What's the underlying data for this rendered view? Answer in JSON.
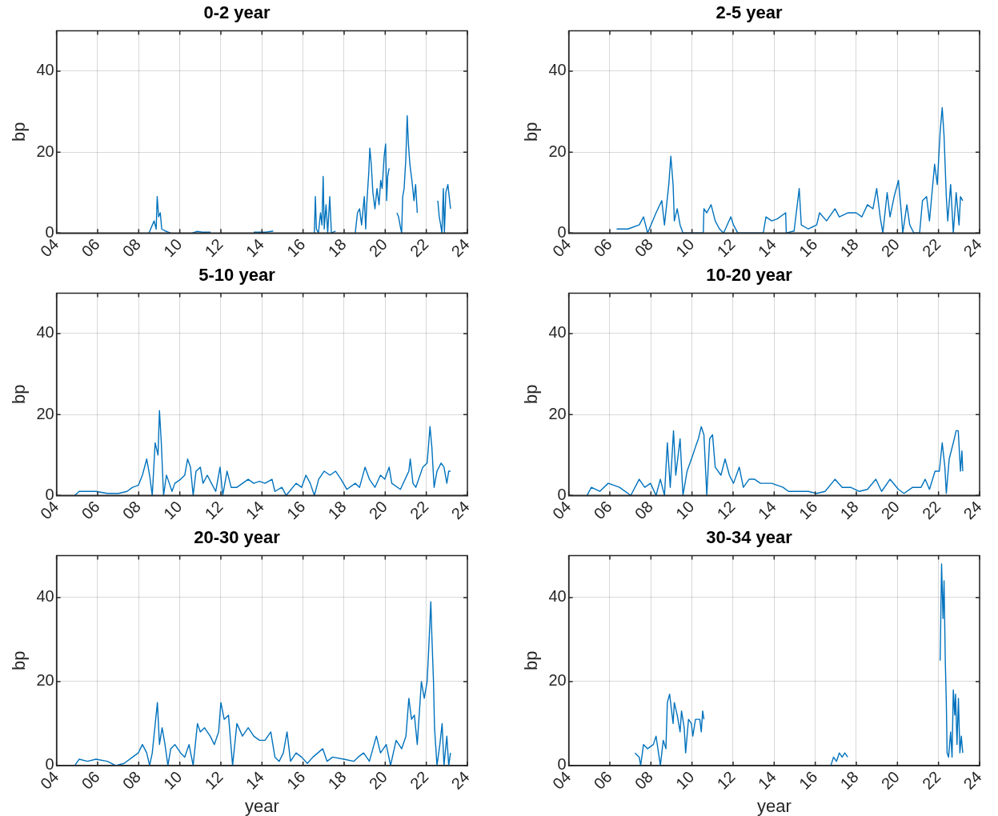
{
  "chart_data": [
    {
      "type": "line",
      "title": "0-2 year",
      "ylabel": "bp",
      "xlim": [
        2004,
        2024
      ],
      "xticks": [
        {
          "value": 2004,
          "label": "04"
        },
        {
          "value": 2006,
          "label": "06"
        },
        {
          "value": 2008,
          "label": "08"
        },
        {
          "value": 2010,
          "label": "10"
        },
        {
          "value": 2012,
          "label": "12"
        },
        {
          "value": 2014,
          "label": "14"
        },
        {
          "value": 2016,
          "label": "16"
        },
        {
          "value": 2018,
          "label": "18"
        },
        {
          "value": 2020,
          "label": "20"
        },
        {
          "value": 2022,
          "label": "22"
        },
        {
          "value": 2024,
          "label": "24"
        }
      ],
      "ylim": [
        0,
        50
      ],
      "yticks": [
        0,
        20,
        40
      ],
      "grid": true,
      "x": [
        2008.5,
        2008.75,
        2008.85,
        2008.9,
        2008.97,
        2009.05,
        2009.12,
        2009.3,
        2009.55,
        2010,
        2010.6,
        2010.85,
        2011.1,
        2011.5,
        2012.5,
        2013.6,
        2014.2,
        2014.55,
        2015.5,
        2016.55,
        2016.6,
        2016.65,
        2016.75,
        2016.85,
        2016.92,
        2016.98,
        2017.03,
        2017.12,
        2017.2,
        2017.3,
        2017.38,
        2017.58,
        2018,
        2018.54,
        2018.65,
        2018.75,
        2018.85,
        2018.98,
        2019.05,
        2019.1,
        2019.2,
        2019.25,
        2019.32,
        2019.4,
        2019.5,
        2019.6,
        2019.7,
        2019.78,
        2019.85,
        2019.95,
        2020.02,
        2020.07,
        2020.12,
        2020.19,
        2020.4,
        2020.57,
        2020.65,
        2020.72,
        2020.8,
        2020.85,
        2020.92,
        2021,
        2021.07,
        2021.13,
        2021.2,
        2021.3,
        2021.4,
        2021.48,
        2021.56,
        2022,
        2022.56,
        2022.63,
        2022.7,
        2022.76,
        2022.83,
        2022.88,
        2022.95,
        2023.05,
        2023.18
      ],
      "series": [
        {
          "color": "#0072bd",
          "values": [
            0,
            3,
            1,
            9,
            4,
            5,
            1,
            0.5,
            0,
            null,
            0,
            0.4,
            0.2,
            0.2,
            null,
            0.2,
            0.2,
            0.5,
            null,
            0,
            9,
            1,
            0,
            5,
            2,
            14,
            1,
            7,
            0,
            9,
            0,
            0.5,
            null,
            0,
            5,
            6,
            2,
            9,
            1,
            7,
            15,
            21,
            17,
            10,
            6,
            11,
            7,
            13,
            11,
            19,
            22,
            8,
            14,
            16,
            null,
            5,
            4,
            2,
            0,
            9,
            11,
            18,
            29,
            22,
            17,
            13,
            8,
            12,
            5,
            null,
            8,
            4,
            2,
            0,
            11,
            0,
            10,
            12,
            6
          ]
        }
      ]
    },
    {
      "type": "line",
      "title": "2-5 year",
      "ylabel": "bp",
      "xlim": [
        2004,
        2024
      ],
      "xticks": [
        {
          "value": 2004,
          "label": "04"
        },
        {
          "value": 2006,
          "label": "06"
        },
        {
          "value": 2008,
          "label": "08"
        },
        {
          "value": 2010,
          "label": "10"
        },
        {
          "value": 2012,
          "label": "12"
        },
        {
          "value": 2014,
          "label": "14"
        },
        {
          "value": 2016,
          "label": "16"
        },
        {
          "value": 2018,
          "label": "18"
        },
        {
          "value": 2020,
          "label": "20"
        },
        {
          "value": 2022,
          "label": "22"
        },
        {
          "value": 2024,
          "label": "24"
        }
      ],
      "ylim": [
        0,
        50
      ],
      "yticks": [
        0,
        20,
        40
      ],
      "grid": true,
      "x": [
        2006.33,
        2006.88,
        2007.43,
        2007.64,
        2007.84,
        2008.25,
        2008.53,
        2008.66,
        2008.87,
        2008.97,
        2009.08,
        2009.14,
        2009.28,
        2009.42,
        2009.56,
        2010.55,
        2010.58,
        2010.72,
        2010.93,
        2011.13,
        2011.34,
        2011.54,
        2011.89,
        2012.02,
        2012.23,
        2013.47,
        2013.6,
        2013.88,
        2014.15,
        2014.56,
        2014.59,
        2014.97,
        2015.22,
        2015.32,
        2015.66,
        2016.07,
        2016.21,
        2016.55,
        2016.96,
        2017.17,
        2017.58,
        2017.99,
        2018.27,
        2018.54,
        2018.81,
        2018.99,
        2019.16,
        2019.29,
        2019.5,
        2019.64,
        2019.84,
        2020.05,
        2020.19,
        2020.26,
        2020.46,
        2020.6,
        2020.8,
        2021.08,
        2021.22,
        2021.42,
        2021.56,
        2021.81,
        2021.94,
        2022.08,
        2022.18,
        2022.27,
        2022.38,
        2022.45,
        2022.59,
        2022.72,
        2022.86,
        2023,
        2023.07,
        2023.18
      ],
      "series": [
        {
          "color": "#0072bd",
          "values": [
            1,
            1,
            2,
            4,
            0,
            5,
            8,
            2,
            12,
            19,
            12,
            3,
            6,
            2,
            0,
            0,
            6,
            5,
            7,
            3,
            1,
            0,
            4,
            2,
            0,
            0,
            4,
            3,
            3.5,
            5,
            0,
            0.5,
            11,
            2,
            1,
            2,
            5,
            3,
            6,
            4,
            5,
            5,
            4,
            7,
            6,
            11,
            4,
            0,
            10,
            4,
            9,
            13,
            5,
            0,
            7,
            2,
            0,
            0,
            8,
            9,
            3,
            17,
            12,
            25,
            31,
            24,
            9,
            3,
            12,
            0,
            10,
            2,
            9,
            8
          ]
        }
      ]
    },
    {
      "type": "line",
      "title": "5-10 year",
      "ylabel": "bp",
      "xlim": [
        2004,
        2024
      ],
      "xticks": [
        {
          "value": 2004,
          "label": "04"
        },
        {
          "value": 2006,
          "label": "06"
        },
        {
          "value": 2008,
          "label": "08"
        },
        {
          "value": 2010,
          "label": "10"
        },
        {
          "value": 2012,
          "label": "12"
        },
        {
          "value": 2014,
          "label": "14"
        },
        {
          "value": 2016,
          "label": "16"
        },
        {
          "value": 2018,
          "label": "18"
        },
        {
          "value": 2020,
          "label": "20"
        },
        {
          "value": 2022,
          "label": "22"
        },
        {
          "value": 2024,
          "label": "24"
        }
      ],
      "ylim": [
        0,
        50
      ],
      "yticks": [
        0,
        20,
        40
      ],
      "grid": true,
      "x": [
        2004.89,
        2005.1,
        2005.51,
        2005.92,
        2006.47,
        2007.02,
        2007.43,
        2007.7,
        2007.98,
        2008.18,
        2008.39,
        2008.53,
        2008.66,
        2008.8,
        2008.94,
        2009.01,
        2009.1,
        2009.21,
        2009.35,
        2009.49,
        2009.62,
        2009.76,
        2010.04,
        2010.24,
        2010.38,
        2010.52,
        2010.65,
        2010.79,
        2011,
        2011.13,
        2011.34,
        2011.54,
        2011.75,
        2011.96,
        2012.09,
        2012.3,
        2012.5,
        2012.78,
        2013.33,
        2013.6,
        2013.88,
        2014.15,
        2014.49,
        2014.63,
        2014.97,
        2015.18,
        2015.66,
        2015.93,
        2016.14,
        2016.35,
        2016.55,
        2016.76,
        2017.03,
        2017.31,
        2017.58,
        2017.85,
        2018.13,
        2018.54,
        2018.75,
        2019.02,
        2019.23,
        2019.5,
        2019.77,
        2019.98,
        2020.19,
        2020.32,
        2020.74,
        2021.15,
        2021.22,
        2021.35,
        2021.49,
        2021.83,
        2022.04,
        2022.18,
        2022.27,
        2022.38,
        2022.52,
        2022.72,
        2022.86,
        2023,
        2023.09,
        2023.18
      ],
      "series": [
        {
          "color": "#0072bd",
          "values": [
            0,
            1,
            1,
            1,
            0.5,
            0.5,
            1,
            2,
            2.5,
            5,
            9,
            5,
            0,
            13,
            10,
            21,
            13,
            0,
            5,
            3,
            1,
            3,
            4,
            5,
            9,
            7,
            0,
            6,
            7,
            3,
            5,
            3,
            1,
            7,
            0,
            6,
            2,
            2,
            4,
            3,
            3.5,
            3,
            4,
            1,
            2,
            0,
            3,
            2,
            5,
            3,
            0,
            4,
            6,
            5,
            6,
            4,
            1.5,
            3,
            2,
            7,
            4,
            2,
            5,
            4,
            7,
            3,
            1.5,
            6,
            9,
            3,
            2,
            7,
            8,
            17,
            12,
            2,
            6,
            8,
            7,
            3,
            6,
            6
          ]
        }
      ]
    },
    {
      "type": "line",
      "title": "10-20 year",
      "ylabel": "bp",
      "xlim": [
        2004,
        2024
      ],
      "xticks": [
        {
          "value": 2004,
          "label": "04"
        },
        {
          "value": 2006,
          "label": "06"
        },
        {
          "value": 2008,
          "label": "08"
        },
        {
          "value": 2010,
          "label": "10"
        },
        {
          "value": 2012,
          "label": "12"
        },
        {
          "value": 2014,
          "label": "14"
        },
        {
          "value": 2016,
          "label": "16"
        },
        {
          "value": 2018,
          "label": "18"
        },
        {
          "value": 2020,
          "label": "20"
        },
        {
          "value": 2022,
          "label": "22"
        },
        {
          "value": 2024,
          "label": "24"
        }
      ],
      "ylim": [
        0,
        50
      ],
      "yticks": [
        0,
        20,
        40
      ],
      "grid": true,
      "x": [
        2004.89,
        2005.1,
        2005.51,
        2005.92,
        2006.47,
        2007.02,
        2007.43,
        2007.7,
        2007.98,
        2008.25,
        2008.46,
        2008.66,
        2008.8,
        2008.94,
        2009.1,
        2009.21,
        2009.42,
        2009.56,
        2009.76,
        2010.04,
        2010.17,
        2010.31,
        2010.45,
        2010.58,
        2010.72,
        2010.86,
        2011,
        2011.13,
        2011.41,
        2011.61,
        2011.82,
        2012.02,
        2012.3,
        2012.5,
        2012.78,
        2013.05,
        2013.33,
        2013.88,
        2014.43,
        2014.7,
        2015.11,
        2015.66,
        2016.07,
        2016.48,
        2016.96,
        2017.31,
        2017.72,
        2018.13,
        2018.54,
        2018.95,
        2019.23,
        2019.64,
        2020.05,
        2020.32,
        2020.74,
        2021.15,
        2021.35,
        2021.56,
        2021.83,
        2022.04,
        2022.18,
        2022.31,
        2022.38,
        2022.52,
        2022.72,
        2022.86,
        2022.96,
        2023.07,
        2023.14,
        2023.18
      ],
      "series": [
        {
          "color": "#0072bd",
          "values": [
            0,
            2,
            1,
            3,
            2,
            0,
            4,
            2,
            3,
            0,
            4,
            0,
            13,
            2,
            16,
            5,
            14,
            0,
            6,
            10,
            12,
            14,
            17,
            15,
            0,
            14,
            15,
            7,
            5,
            9,
            5,
            3,
            7,
            2,
            4,
            4,
            3,
            3,
            2,
            1,
            1,
            1,
            0.5,
            1,
            4,
            2,
            2,
            1,
            1.5,
            4,
            1,
            4,
            1.5,
            0.5,
            2,
            2,
            4,
            1.5,
            6,
            6,
            13,
            7,
            0.5,
            9,
            13,
            16,
            16,
            6,
            11,
            6
          ]
        }
      ]
    },
    {
      "type": "line",
      "title": "20-30 year",
      "xlabel": "year",
      "ylabel": "bp",
      "xlim": [
        2004,
        2024
      ],
      "xticks": [
        {
          "value": 2004,
          "label": "04"
        },
        {
          "value": 2006,
          "label": "06"
        },
        {
          "value": 2008,
          "label": "08"
        },
        {
          "value": 2010,
          "label": "10"
        },
        {
          "value": 2012,
          "label": "12"
        },
        {
          "value": 2014,
          "label": "14"
        },
        {
          "value": 2016,
          "label": "16"
        },
        {
          "value": 2018,
          "label": "18"
        },
        {
          "value": 2020,
          "label": "20"
        },
        {
          "value": 2022,
          "label": "22"
        },
        {
          "value": 2024,
          "label": "24"
        }
      ],
      "ylim": [
        0,
        50
      ],
      "yticks": [
        0,
        20,
        40
      ],
      "grid": true,
      "x": [
        2004.89,
        2005.1,
        2005.51,
        2005.92,
        2006.47,
        2006.88,
        2007.29,
        2007.7,
        2007.98,
        2008.18,
        2008.39,
        2008.53,
        2008.66,
        2008.91,
        2009.01,
        2009.14,
        2009.28,
        2009.42,
        2009.56,
        2009.76,
        2010.04,
        2010.24,
        2010.45,
        2010.65,
        2010.86,
        2011,
        2011.2,
        2011.48,
        2011.68,
        2011.89,
        2012,
        2012.16,
        2012.37,
        2012.57,
        2012.78,
        2013.05,
        2013.33,
        2013.6,
        2013.88,
        2014.15,
        2014.43,
        2014.63,
        2014.84,
        2015.04,
        2015.22,
        2015.39,
        2015.66,
        2015.93,
        2016.21,
        2016.48,
        2016.96,
        2017.17,
        2017.44,
        2017.99,
        2018.47,
        2018.68,
        2018.95,
        2019.23,
        2019.57,
        2019.77,
        2020.05,
        2020.26,
        2020.53,
        2020.8,
        2021.01,
        2021.15,
        2021.28,
        2021.42,
        2021.56,
        2021.76,
        2021.9,
        2022.04,
        2022.11,
        2022.22,
        2022.27,
        2022.35,
        2022.4,
        2022.52,
        2022.66,
        2022.77,
        2022.86,
        2023,
        2023.09,
        2023.18
      ],
      "series": [
        {
          "color": "#0072bd",
          "values": [
            0,
            1.5,
            1,
            1.5,
            1,
            0,
            0.5,
            2,
            3,
            5,
            3,
            0,
            3,
            15,
            5,
            9,
            5,
            0,
            4,
            5,
            3,
            2,
            5,
            0,
            10,
            8,
            9,
            7,
            5,
            8,
            15,
            11,
            12,
            0,
            10,
            7,
            9,
            7,
            6,
            6,
            8,
            2,
            1,
            3,
            8,
            1,
            3,
            2,
            0.5,
            2,
            4,
            1,
            2,
            1.5,
            1,
            2,
            3,
            1,
            7,
            3,
            5,
            0,
            6,
            4,
            7,
            16,
            11,
            12,
            5,
            20,
            16,
            20,
            27,
            39,
            31,
            20,
            9,
            0,
            5,
            10,
            0,
            7,
            0,
            3
          ]
        }
      ]
    },
    {
      "type": "line",
      "title": "30-34 year",
      "xlabel": "year",
      "ylabel": "bp",
      "xlim": [
        2004,
        2024
      ],
      "xticks": [
        {
          "value": 2004,
          "label": "04"
        },
        {
          "value": 2006,
          "label": "06"
        },
        {
          "value": 2008,
          "label": "08"
        },
        {
          "value": 2010,
          "label": "10"
        },
        {
          "value": 2012,
          "label": "12"
        },
        {
          "value": 2014,
          "label": "14"
        },
        {
          "value": 2016,
          "label": "16"
        },
        {
          "value": 2018,
          "label": "18"
        },
        {
          "value": 2020,
          "label": "20"
        },
        {
          "value": 2022,
          "label": "22"
        },
        {
          "value": 2024,
          "label": "24"
        }
      ],
      "ylim": [
        0,
        50
      ],
      "yticks": [
        0,
        20,
        40
      ],
      "grid": true,
      "x": [
        2007.22,
        2007.43,
        2007.5,
        2007.64,
        2007.84,
        2008.12,
        2008.25,
        2008.46,
        2008.6,
        2008.73,
        2008.8,
        2008.91,
        2009.08,
        2009.14,
        2009.28,
        2009.42,
        2009.49,
        2009.62,
        2009.69,
        2009.83,
        2009.97,
        2010.04,
        2010.17,
        2010.38,
        2010.45,
        2010.52,
        2010.58,
        2013.5,
        2016.76,
        2016.89,
        2017.03,
        2017.17,
        2017.31,
        2017.44,
        2017.58,
        2020,
        2022.08,
        2022.15,
        2022.22,
        2022.27,
        2022.33,
        2022.38,
        2022.42,
        2022.49,
        2022.59,
        2022.66,
        2022.72,
        2022.79,
        2022.83,
        2022.9,
        2022.97,
        2023.04,
        2023.11,
        2023.18
      ],
      "series": [
        {
          "color": "#0072bd",
          "values": [
            3,
            2,
            0,
            5,
            4,
            5,
            7,
            0,
            6,
            4,
            15,
            17,
            10,
            15,
            12,
            8,
            13,
            9,
            3,
            11,
            10,
            7,
            11,
            11,
            8,
            13,
            11,
            null,
            0,
            2,
            1,
            3,
            2,
            3,
            2,
            null,
            25,
            48,
            35,
            44,
            25,
            15,
            3,
            2,
            8,
            2,
            18,
            12,
            17,
            5,
            16,
            3,
            7,
            3
          ]
        }
      ]
    }
  ]
}
